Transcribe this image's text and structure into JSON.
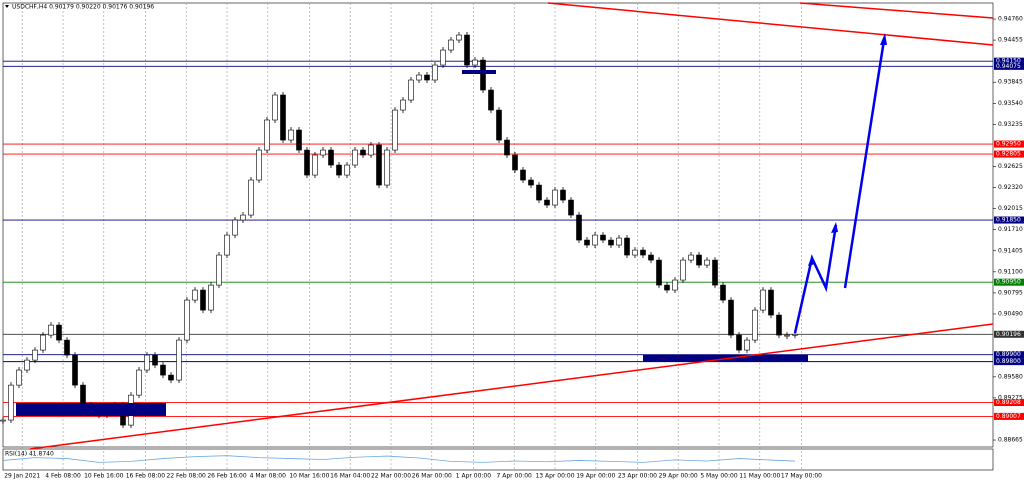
{
  "chart_data": {
    "type": "candlestick",
    "header": "USDCHF,H4  0.90179 0.90220 0.90176 0.90196",
    "values": [
      0.88954,
      0.8946,
      0.89678,
      0.89822,
      0.89967,
      0.90184,
      0.90329,
      0.90112,
      0.89895,
      0.8946,
      0.89171,
      0.89069,
      0.89026,
      0.89098,
      0.89171,
      0.88881,
      0.89315,
      0.89678,
      0.89895,
      0.8975,
      0.89605,
      0.89533,
      0.90112,
      0.90691,
      0.90836,
      0.90546,
      0.90908,
      0.91343,
      0.91632,
      0.9185,
      0.91922,
      0.92429,
      0.92863,
      0.93298,
      0.9366,
      0.93008,
      0.93153,
      0.92863,
      0.92501,
      0.92791,
      0.92863,
      0.92646,
      0.92501,
      0.92646,
      0.92863,
      0.92791,
      0.92936,
      0.92356,
      0.92863,
      0.93442,
      0.93587,
      0.93877,
      0.93949,
      0.93877,
      0.94094,
      0.94311,
      0.94456,
      0.94528,
      0.94094,
      0.94166,
      0.93732,
      0.93442,
      0.93008,
      0.92791,
      0.92574,
      0.92429,
      0.92356,
      0.92139,
      0.92067,
      0.92284,
      0.92139,
      0.91922,
      0.9156,
      0.91488,
      0.91632,
      0.9156,
      0.91488,
      0.91589,
      0.91343,
      0.91415,
      0.91343,
      0.9127,
      0.90908,
      0.90836,
      0.90981,
      0.9127,
      0.91343,
      0.91198,
      0.9127,
      0.90908,
      0.90691,
      0.90184,
      0.89967,
      0.90112,
      0.90546,
      0.90836,
      0.90474,
      0.90184,
      0.90184,
      0.90196
    ],
    "bull_color": "#ffffff",
    "bear_color": "#000000",
    "xlim": [
      0,
      123.75
    ],
    "xticks": [
      {
        "value": 2.4,
        "label": "29 Jan 2021"
      },
      {
        "value": 7.5,
        "label": "4 Feb 08:00"
      },
      {
        "value": 12.6,
        "label": "10 Feb 16:00"
      },
      {
        "value": 17.8,
        "label": "16 Feb 08:00"
      },
      {
        "value": 22.9,
        "label": "22 Feb 08:00"
      },
      {
        "value": 28,
        "label": "26 Feb 16:00"
      },
      {
        "value": 33.1,
        "label": "4 Mar 08:00"
      },
      {
        "value": 38.3,
        "label": "10 Mar 16:00"
      },
      {
        "value": 43.4,
        "label": "16 Mar 04:00"
      },
      {
        "value": 48.5,
        "label": "22 Mar 00:00"
      },
      {
        "value": 53.6,
        "label": "26 Mar 00:00"
      },
      {
        "value": 58.8,
        "label": "1 Apr 00:00"
      },
      {
        "value": 63.9,
        "label": "7 Apr 00:00"
      },
      {
        "value": 69,
        "label": "13 Apr 00:00"
      },
      {
        "value": 74.1,
        "label": "19 Apr 00:00"
      },
      {
        "value": 79.3,
        "label": "23 Apr 00:00"
      },
      {
        "value": 84.4,
        "label": "29 Apr 00:00"
      },
      {
        "value": 89.5,
        "label": "5 May 00:00"
      },
      {
        "value": 94.6,
        "label": "11 May 00:00"
      },
      {
        "value": 99.8,
        "label": "17 May 00:00"
      }
    ],
    "ylim": [
      0.88564,
      0.94992
    ],
    "yticks": [
      {
        "value": 0.9476,
        "label": "0.94760"
      },
      {
        "value": 0.94455,
        "label": "0.94455"
      },
      {
        "value": 0.93845,
        "label": "0.93845"
      },
      {
        "value": 0.9354,
        "label": "0.93540"
      },
      {
        "value": 0.93235,
        "label": "0.93235"
      },
      {
        "value": 0.92625,
        "label": "0.92625"
      },
      {
        "value": 0.9232,
        "label": "0.92320"
      },
      {
        "value": 0.92015,
        "label": "0.92015"
      },
      {
        "value": 0.9171,
        "label": "0.91710"
      },
      {
        "value": 0.91405,
        "label": "0.91405"
      },
      {
        "value": 0.911,
        "label": "0.91100"
      },
      {
        "value": 0.90795,
        "label": "0.90795"
      },
      {
        "value": 0.9049,
        "label": "0.90490"
      },
      {
        "value": 0.8958,
        "label": "0.89580"
      },
      {
        "value": 0.89275,
        "label": "0.89275"
      },
      {
        "value": 0.88665,
        "label": "0.88665"
      }
    ],
    "grid": true,
    "levels": [
      {
        "value": 0.9415,
        "label": "0.94150",
        "color": "#000080"
      },
      {
        "value": 0.94075,
        "label": "0.94075",
        "color": "#000080"
      },
      {
        "value": 0.9295,
        "label": "0.92950",
        "color": "#ff0000"
      },
      {
        "value": 0.92805,
        "label": "0.92805",
        "color": "#ff0000"
      },
      {
        "value": 0.9185,
        "label": "0.91850",
        "color": "#000080"
      },
      {
        "value": 0.9095,
        "label": "0.90950",
        "color": "#008000"
      },
      {
        "value": 0.90196,
        "label": "0.90196",
        "color": "#333333"
      },
      {
        "value": 0.899,
        "label": "0.89900",
        "color": "#000080"
      },
      {
        "value": 0.898,
        "label": "0.89800",
        "color": "#000080"
      },
      {
        "value": 0.89208,
        "label": "0.89208",
        "color": "#ff0000"
      },
      {
        "value": 0.89007,
        "label": "0.89007",
        "color": "#ff0000"
      }
    ],
    "rsi": {
      "label": "RSI(14) 41.8740",
      "color": "#6ca6e0",
      "ylim": [
        0,
        100
      ],
      "x": [
        0,
        4,
        8,
        12,
        16,
        20,
        24,
        28,
        32,
        36,
        40,
        44,
        48,
        52,
        56,
        60,
        64,
        68,
        72,
        76,
        80,
        84,
        88,
        92,
        96,
        99
      ],
      "values": [
        45,
        60,
        55,
        35,
        40,
        55,
        65,
        70,
        60,
        55,
        50,
        62,
        68,
        58,
        40,
        35,
        42,
        38,
        45,
        40,
        35,
        48,
        42,
        55,
        47,
        41.874
      ]
    }
  }
}
